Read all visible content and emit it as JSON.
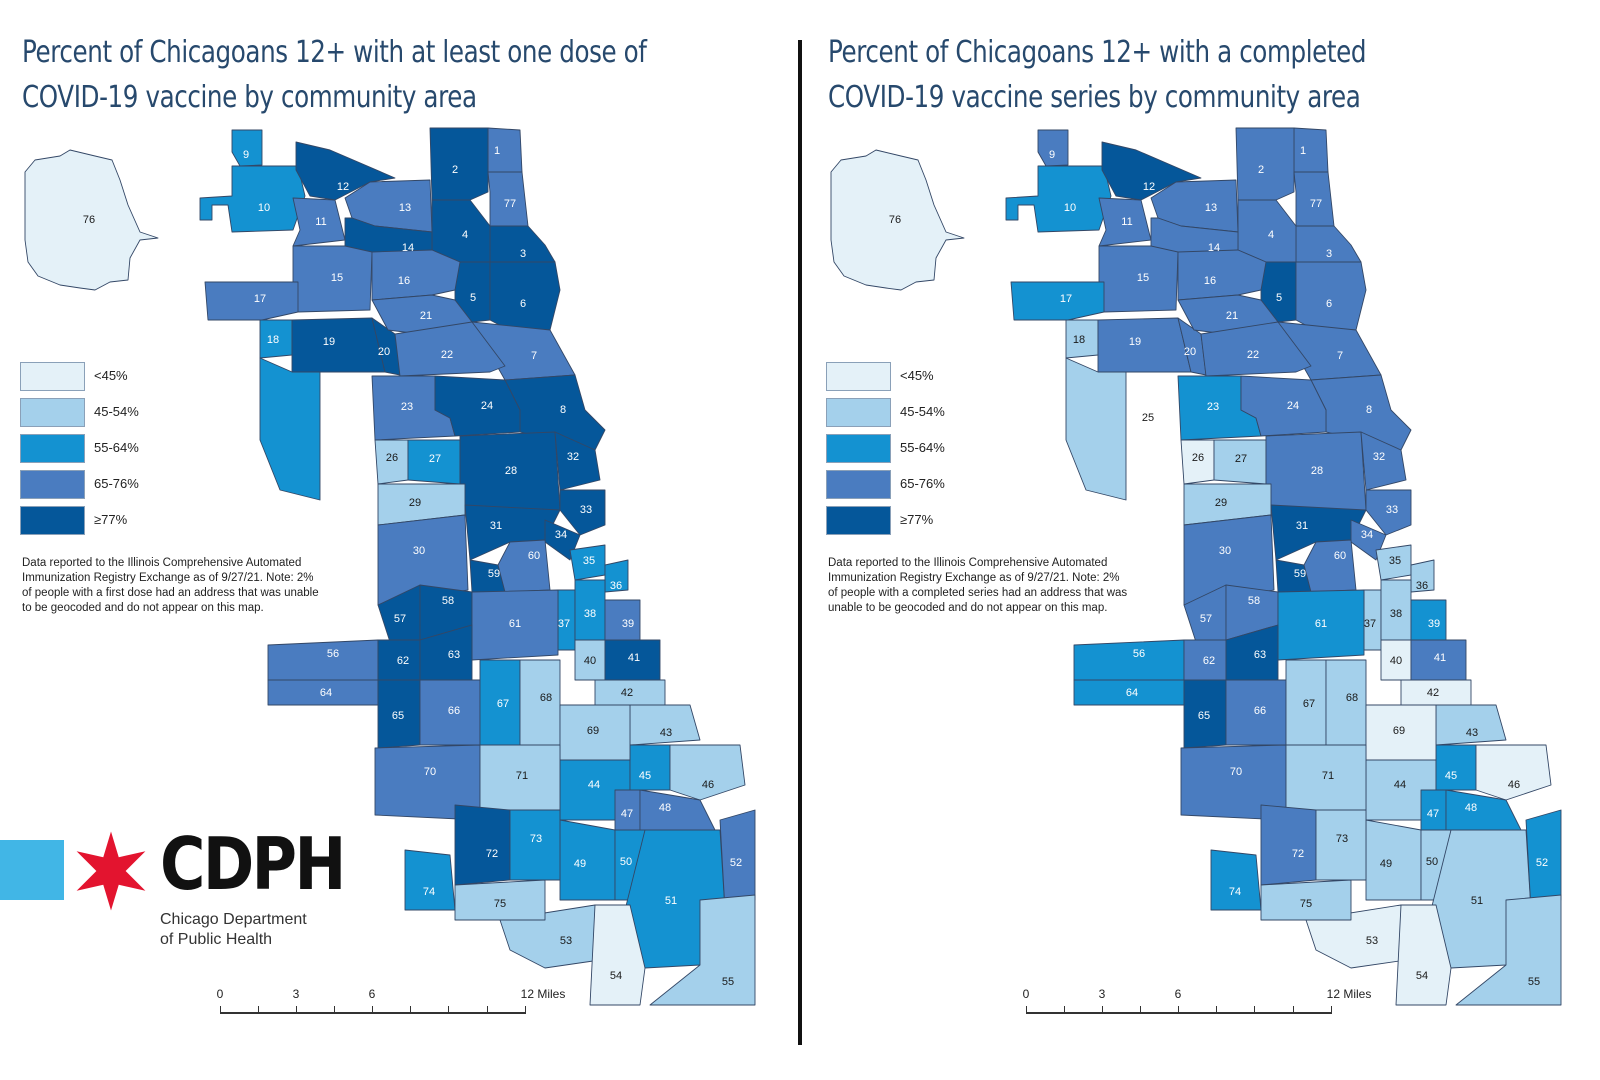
{
  "colors": {
    "lt45": "#e4f1f8",
    "45to54": "#a4d0eb",
    "55to64": "#1492d1",
    "65to76": "#4a7cc0",
    "ge77": "#05579a",
    "logo_block": "#41b6e6",
    "logo_star": "#e3142f",
    "title": "#27496d"
  },
  "legend": [
    {
      "key": "lt45",
      "label": "<45%"
    },
    {
      "key": "45to54",
      "label": "45-54%"
    },
    {
      "key": "55to64",
      "label": "55-64%"
    },
    {
      "key": "65to76",
      "label": "65-76%"
    },
    {
      "key": "ge77",
      "label": "≥77%"
    }
  ],
  "scale": {
    "ticks": [
      "0",
      "3",
      "6",
      "12 Miles"
    ]
  },
  "maps": [
    {
      "title_line1": "Percent of Chicagoans 12+ with at least one dose of",
      "title_line2": "COVID-19 vaccine by community area",
      "note": "Data reported to the Illinois Comprehensive Automated Immunization Registry Exchange as of 9/27/21. Note: 2% of people with a first dose had an address that was unable to be geocoded and do not appear on this map.",
      "areas": {
        "1": "65to76",
        "2": "ge77",
        "3": "ge77",
        "4": "ge77",
        "5": "ge77",
        "6": "ge77",
        "7": "65to76",
        "8": "ge77",
        "9": "55to64",
        "10": "55to64",
        "11": "65to76",
        "12": "ge77",
        "13": "65to76",
        "14": "ge77",
        "15": "65to76",
        "16": "65to76",
        "17": "65to76",
        "18": "55to64",
        "19": "ge77",
        "20": "ge77",
        "21": "65to76",
        "22": "65to76",
        "23": "65to76",
        "24": "ge77",
        "25": "55to64",
        "26": "45to54",
        "27": "55to64",
        "28": "ge77",
        "29": "45to54",
        "30": "65to76",
        "31": "ge77",
        "32": "ge77",
        "33": "ge77",
        "34": "ge77",
        "35": "55to64",
        "36": "55to64",
        "37": "55to64",
        "38": "55to64",
        "39": "65to76",
        "40": "45to54",
        "41": "ge77",
        "42": "45to54",
        "43": "45to54",
        "44": "55to64",
        "45": "55to64",
        "46": "45to54",
        "47": "65to76",
        "48": "65to76",
        "49": "55to64",
        "50": "55to64",
        "51": "55to64",
        "52": "65to76",
        "53": "45to54",
        "54": "lt45",
        "55": "45to54",
        "56": "65to76",
        "57": "ge77",
        "58": "ge77",
        "59": "ge77",
        "60": "65to76",
        "61": "65to76",
        "62": "ge77",
        "63": "ge77",
        "64": "65to76",
        "65": "ge77",
        "66": "65to76",
        "67": "55to64",
        "68": "45to54",
        "69": "45to54",
        "70": "65to76",
        "71": "45to54",
        "72": "ge77",
        "73": "55to64",
        "74": "55to64",
        "75": "45to54",
        "76": "lt45",
        "77": "65to76"
      }
    },
    {
      "title_line1": "Percent of Chicagoans 12+ with a completed",
      "title_line2": "COVID-19 vaccine series by community area",
      "note": "Data reported to the Illinois Comprehensive Automated Immunization Registry Exchange as of 9/27/21. Note: 2% of people with a completed series had an address that was unable to be geocoded and do not appear on this map.",
      "areas": {
        "1": "65to76",
        "2": "65to76",
        "3": "65to76",
        "4": "65to76",
        "5": "ge77",
        "6": "65to76",
        "7": "65to76",
        "8": "65to76",
        "9": "65to76",
        "10": "55to64",
        "11": "65to76",
        "12": "ge77",
        "13": "65to76",
        "14": "65to76",
        "15": "65to76",
        "16": "65to76",
        "17": "55to64",
        "18": "45to54",
        "19": "65to76",
        "20": "65to76",
        "21": "65to76",
        "22": "65to76",
        "23": "55to64",
        "24": "65to76",
        "25": "45to54",
        "26": "lt45",
        "27": "45to54",
        "28": "65to76",
        "29": "45to54",
        "30": "65to76",
        "31": "ge77",
        "32": "65to76",
        "33": "65to76",
        "34": "65to76",
        "35": "45to54",
        "36": "45to54",
        "37": "45to54",
        "38": "45to54",
        "39": "55to64",
        "40": "lt45",
        "41": "65to76",
        "42": "lt45",
        "43": "45to54",
        "44": "45to54",
        "45": "55to64",
        "46": "lt45",
        "47": "55to64",
        "48": "55to64",
        "49": "45to54",
        "50": "45to54",
        "51": "45to54",
        "52": "55to64",
        "53": "lt45",
        "54": "lt45",
        "55": "45to54",
        "56": "55to64",
        "57": "65to76",
        "58": "65to76",
        "59": "ge77",
        "60": "65to76",
        "61": "55to64",
        "62": "65to76",
        "63": "ge77",
        "64": "55to64",
        "65": "ge77",
        "66": "65to76",
        "67": "45to54",
        "68": "45to54",
        "69": "lt45",
        "70": "65to76",
        "71": "45to54",
        "72": "65to76",
        "73": "45to54",
        "74": "55to64",
        "75": "45to54",
        "76": "lt45",
        "77": "65to76"
      }
    }
  ],
  "logo": {
    "text": "CDPH",
    "line1": "Chicago Department",
    "line2": "of Public Health"
  }
}
